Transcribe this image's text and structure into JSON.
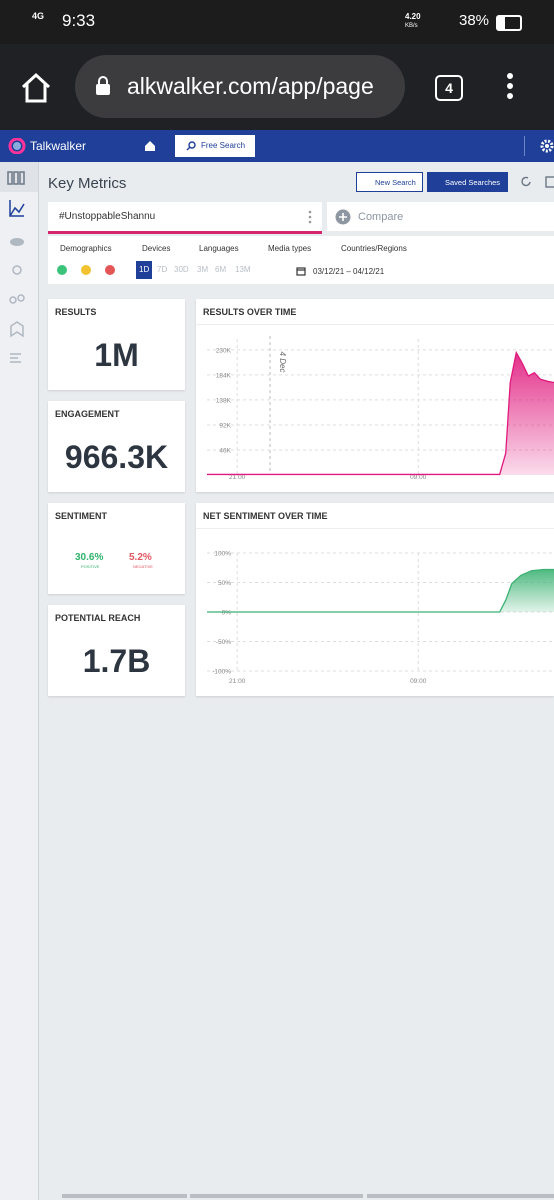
{
  "status_bar": {
    "network": "4G",
    "time": "9:33",
    "speed": "4.20",
    "speed_unit": "KB/s",
    "battery": "38%"
  },
  "browser": {
    "url": "alkwalker.com/app/page",
    "tabs": "4"
  },
  "app_header": {
    "brand": "Talkwalker",
    "free_search": "Free Search"
  },
  "page": {
    "title": "Key Metrics",
    "new_search": "New Search",
    "saved_searches": "Saved Searches"
  },
  "query": {
    "name": "#UnstoppableShannu",
    "compare": "Compare"
  },
  "filters": [
    "Demographics",
    "Devices",
    "Languages",
    "Media types",
    "Countries/Regions"
  ],
  "ranges": [
    "1D",
    "7D",
    "30D",
    "3M",
    "6M",
    "13M"
  ],
  "date_range": "03/12/21 – 04/12/21",
  "metrics": {
    "results": {
      "label": "RESULTS",
      "value": "1M"
    },
    "engagement": {
      "label": "ENGAGEMENT",
      "value": "966.3K"
    },
    "sentiment": {
      "label": "SENTIMENT",
      "positive": "30.6%",
      "positive_label": "POSITIVE",
      "negative": "5.2%",
      "negative_label": "NEGATIVE"
    },
    "reach": {
      "label": "POTENTIAL REACH",
      "value": "1.7B"
    }
  },
  "results_chart": {
    "type": "area",
    "title": "RESULTS OVER TIME",
    "annotation": "4 Dec",
    "color": "#e0197d",
    "x": [
      -2,
      0,
      4,
      8,
      12,
      16,
      17.4,
      17.8,
      18.1,
      18.5,
      18.9,
      19.3,
      19.7,
      20.1,
      20.6,
      21
    ],
    "values": [
      1000,
      1000,
      1000,
      1000,
      1000,
      1000,
      1000,
      40000,
      170000,
      225000,
      205000,
      182000,
      188000,
      176000,
      172000,
      170000
    ],
    "xlim": [
      -2,
      21
    ],
    "xticks": [
      {
        "value": 0,
        "label": "21:00"
      },
      {
        "value": 12,
        "label": "09:00"
      }
    ],
    "ylim": [
      0,
      250000
    ],
    "yticks": [
      {
        "value": 46000,
        "label": "46K"
      },
      {
        "value": 92000,
        "label": "92K"
      },
      {
        "value": 138000,
        "label": "138K"
      },
      {
        "value": 184000,
        "label": "184K"
      },
      {
        "value": 230000,
        "label": "230K"
      }
    ]
  },
  "sentiment_chart": {
    "type": "area",
    "title": "NET SENTIMENT OVER TIME",
    "color": "#3bb273",
    "x": [
      -2,
      0,
      4,
      8,
      12,
      16,
      17.4,
      17.8,
      18.2,
      18.8,
      19.5,
      20.3,
      21
    ],
    "values": [
      0,
      0,
      0,
      0,
      0,
      0,
      0,
      20,
      48,
      62,
      70,
      72,
      72
    ],
    "xlim": [
      -2,
      21
    ],
    "xticks": [
      {
        "value": 0,
        "label": "21:00"
      },
      {
        "value": 12,
        "label": "09:00"
      }
    ],
    "ylim": [
      -100,
      100
    ],
    "yticks": [
      {
        "value": -100,
        "label": "-100%"
      },
      {
        "value": -50,
        "label": "-50%"
      },
      {
        "value": 0,
        "label": "0%"
      },
      {
        "value": 50,
        "label": "50%"
      },
      {
        "value": 100,
        "label": "100%"
      }
    ]
  }
}
